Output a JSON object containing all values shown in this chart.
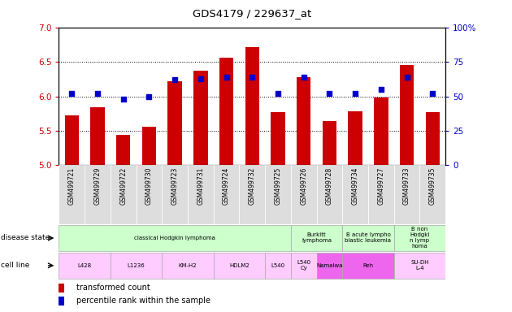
{
  "title": "GDS4179 / 229637_at",
  "samples": [
    "GSM499721",
    "GSM499729",
    "GSM499722",
    "GSM499730",
    "GSM499723",
    "GSM499731",
    "GSM499724",
    "GSM499732",
    "GSM499725",
    "GSM499726",
    "GSM499728",
    "GSM499734",
    "GSM499727",
    "GSM499733",
    "GSM499735"
  ],
  "bar_values": [
    5.72,
    5.84,
    5.44,
    5.56,
    6.22,
    6.38,
    6.56,
    6.72,
    5.77,
    6.28,
    5.64,
    5.78,
    5.99,
    6.46,
    5.77
  ],
  "dot_values": [
    52,
    52,
    48,
    50,
    62,
    63,
    64,
    64,
    52,
    64,
    52,
    52,
    55,
    64,
    52
  ],
  "bar_color": "#cc0000",
  "dot_color": "#0000cc",
  "ylim_left": [
    5.0,
    7.0
  ],
  "ylim_right": [
    0,
    100
  ],
  "yticks_left": [
    5.0,
    5.5,
    6.0,
    6.5,
    7.0
  ],
  "yticks_right": [
    0,
    25,
    50,
    75,
    100
  ],
  "grid_values": [
    5.5,
    6.0,
    6.5
  ],
  "disease_state_groups": [
    {
      "label": "classical Hodgkin lymphoma",
      "start": 0,
      "end": 9,
      "color": "#ccffcc"
    },
    {
      "label": "Burkitt\nlymphoma",
      "start": 9,
      "end": 11,
      "color": "#ccffcc"
    },
    {
      "label": "B acute lympho\nblastic leukemia",
      "start": 11,
      "end": 13,
      "color": "#ccffcc"
    },
    {
      "label": "B non\nHodgki\nn lymp\nhoma",
      "start": 13,
      "end": 15,
      "color": "#ccffcc"
    }
  ],
  "cell_line_groups": [
    {
      "label": "L428",
      "start": 0,
      "end": 2,
      "color": "#ffccff"
    },
    {
      "label": "L1236",
      "start": 2,
      "end": 4,
      "color": "#ffccff"
    },
    {
      "label": "KM-H2",
      "start": 4,
      "end": 6,
      "color": "#ffccff"
    },
    {
      "label": "HDLM2",
      "start": 6,
      "end": 8,
      "color": "#ffccff"
    },
    {
      "label": "L540",
      "start": 8,
      "end": 9,
      "color": "#ffccff"
    },
    {
      "label": "L540\nCy",
      "start": 9,
      "end": 10,
      "color": "#ffccff"
    },
    {
      "label": "Namalwa",
      "start": 10,
      "end": 11,
      "color": "#ee66ee"
    },
    {
      "label": "Reh",
      "start": 11,
      "end": 13,
      "color": "#ee66ee"
    },
    {
      "label": "SU-DH\nL-4",
      "start": 13,
      "end": 15,
      "color": "#ffccff"
    }
  ],
  "legend_items": [
    {
      "label": "transformed count",
      "color": "#cc0000"
    },
    {
      "label": "percentile rank within the sample",
      "color": "#0000cc"
    }
  ],
  "bg_color": "#ffffff",
  "left_axis_color": "#cc0000",
  "right_axis_color": "#0000cc",
  "xticklabel_bg": "#dddddd"
}
